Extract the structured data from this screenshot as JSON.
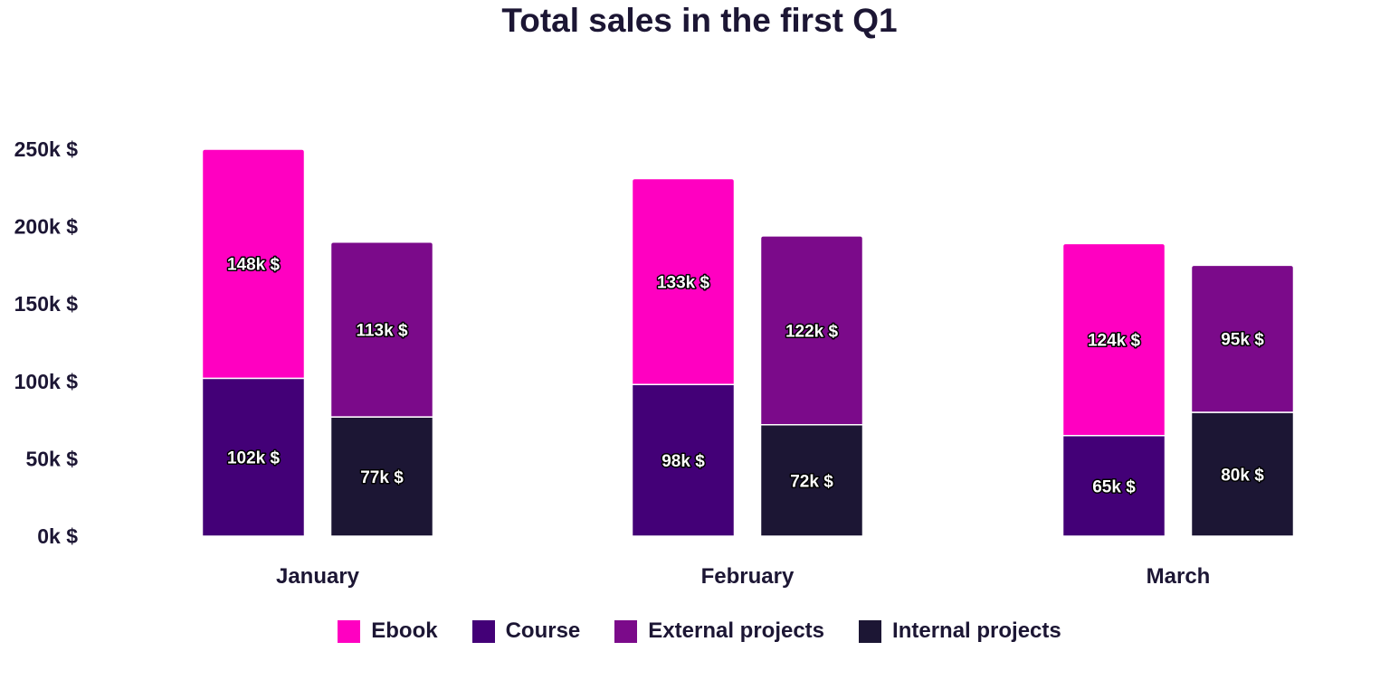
{
  "chart_data": {
    "type": "bar",
    "title": "Total sales in the first Q1",
    "xlabel": "",
    "ylabel": "",
    "ylim": [
      0,
      250
    ],
    "yticks": [
      {
        "value": 0,
        "label": "0k $"
      },
      {
        "value": 50,
        "label": "50k $"
      },
      {
        "value": 100,
        "label": "100k $"
      },
      {
        "value": 150,
        "label": "150k $"
      },
      {
        "value": 200,
        "label": "200k $"
      },
      {
        "value": 250,
        "label": "250k $"
      }
    ],
    "categories": [
      "January",
      "February",
      "March"
    ],
    "stacks": [
      "Products",
      "Projects"
    ],
    "series": [
      {
        "name": "Ebook",
        "stack": "Products",
        "color": "#ff00c1",
        "values": [
          148,
          133,
          124
        ],
        "labels": [
          "148k $",
          "133k $",
          "124k $"
        ]
      },
      {
        "name": "Course",
        "stack": "Products",
        "color": "#430077",
        "values": [
          102,
          98,
          65
        ],
        "labels": [
          "102k $",
          "98k $",
          "65k $"
        ]
      },
      {
        "name": "External projects",
        "stack": "Projects",
        "color": "#7b0a8a",
        "values": [
          113,
          122,
          95
        ],
        "labels": [
          "113k $",
          "122k $",
          "95k $"
        ]
      },
      {
        "name": "Internal projects",
        "stack": "Projects",
        "color": "#1c1634",
        "values": [
          77,
          72,
          80
        ],
        "labels": [
          "77k $",
          "72k $",
          "80k $"
        ]
      }
    ],
    "legend_position": "bottom-center",
    "grid": false
  }
}
